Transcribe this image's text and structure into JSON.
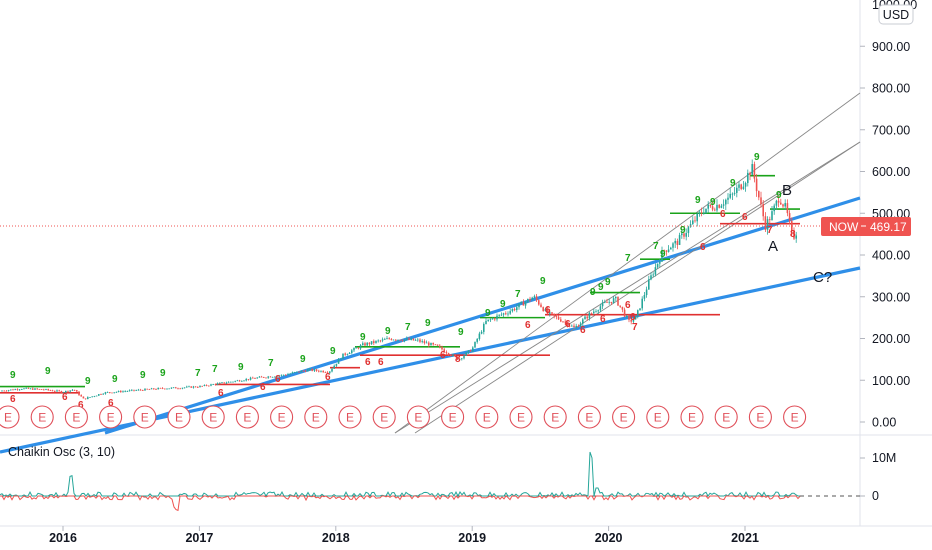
{
  "currency": "USD",
  "price_scale_top": "1000.00",
  "now_tag": {
    "label": "NOW",
    "price": "469.17"
  },
  "oscillator": {
    "label": "Chaikin Osc (3, 10)",
    "ticks": [
      "10M",
      "0"
    ]
  },
  "annotations": [
    "B",
    "A",
    "C?"
  ],
  "earnings_marker": "E",
  "colors": {
    "trendline": "#2f8fe8",
    "channel": "#888888",
    "bull": "#26a69a",
    "bear": "#ef5350",
    "setup_green": "#1aa31a",
    "setup_red": "#e03030",
    "now": "#ef5350",
    "osc_pos": "#26a69a",
    "osc_neg": "#ef5350"
  },
  "chart_data": {
    "type": "line",
    "title": "",
    "xlabel": "",
    "ylabel": "",
    "x_ticks": [
      "2016",
      "2017",
      "2018",
      "2019",
      "2020",
      "2021"
    ],
    "y_ticks": [
      "900.00",
      "800.00",
      "700.00",
      "600.00",
      "500.00",
      "400.00",
      "300.00",
      "200.00",
      "100.00",
      "0.00"
    ],
    "ylim": [
      -25,
      1000
    ],
    "grid": false,
    "series": [
      {
        "x": [
          2015.55,
          2015.7,
          2015.85,
          2016.0,
          2016.08,
          2016.15,
          2016.3,
          2016.5,
          2016.7,
          2016.85,
          2017.0,
          2017.2,
          2017.4,
          2017.6,
          2017.8,
          2017.95,
          2018.05,
          2018.2,
          2018.4,
          2018.6,
          2018.75,
          2018.9,
          2019.0,
          2019.1,
          2019.3,
          2019.45,
          2019.55,
          2019.65,
          2019.75,
          2019.85,
          2019.95,
          2020.05,
          2020.15,
          2020.2,
          2020.3,
          2020.4,
          2020.5,
          2020.6,
          2020.7,
          2020.8,
          2020.9,
          2021.0,
          2021.05,
          2021.1,
          2021.15,
          2021.2,
          2021.25,
          2021.3,
          2021.35,
          2021.4
        ],
        "values": [
          75,
          80,
          78,
          72,
          78,
          55,
          70,
          75,
          80,
          82,
          85,
          95,
          105,
          112,
          125,
          120,
          160,
          185,
          200,
          195,
          180,
          150,
          175,
          240,
          270,
          300,
          260,
          245,
          225,
          255,
          280,
          295,
          240,
          250,
          340,
          410,
          430,
          470,
          510,
          520,
          540,
          580,
          610,
          540,
          470,
          500,
          540,
          510,
          440,
          469
        ]
      }
    ],
    "annotations_prices": {
      "now": 469.17
    }
  }
}
